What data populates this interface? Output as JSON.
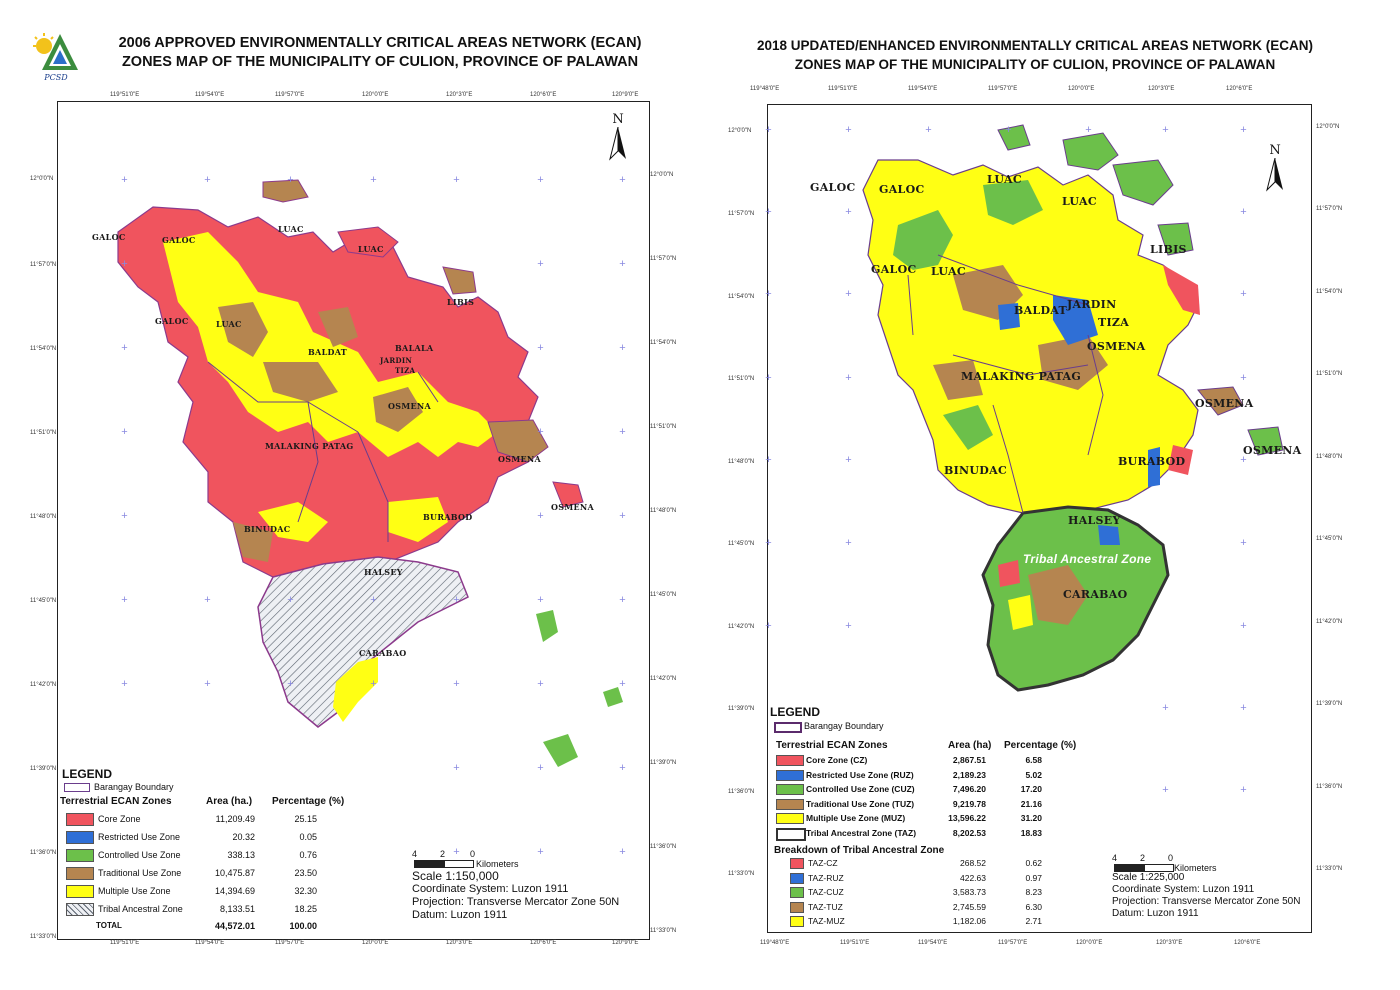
{
  "left_map": {
    "title_line1": "2006 APPROVED ENVIRONMENTALLY CRITICAL AREAS NETWORK (ECAN)",
    "title_line2": "ZONES MAP OF THE MUNICIPALITY OF CULION, PROVINCE OF PALAWAN",
    "logo_text": "PCSD",
    "north": "N",
    "lon_ticks": [
      "119°51'0\"E",
      "119°54'0\"E",
      "119°57'0\"E",
      "120°0'0\"E",
      "120°3'0\"E",
      "120°6'0\"E",
      "120°9'0\"E"
    ],
    "lat_ticks_left": [
      "12°0'0\"N",
      "11°57'0\"N",
      "11°54'0\"N",
      "11°51'0\"N",
      "11°48'0\"N",
      "11°45'0\"N",
      "11°42'0\"N",
      "11°39'0\"N",
      "11°36'0\"N",
      "11°33'0\"N"
    ],
    "lat_ticks_right": [
      "12°0'0\"N",
      "11°57'0\"N",
      "11°54'0\"N",
      "11°51'0\"N",
      "11°48'0\"N",
      "11°45'0\"N",
      "11°42'0\"N",
      "11°39'0\"N",
      "11°36'0\"N",
      "11°33'0\"N"
    ],
    "barangays": [
      "GALOC",
      "GALOC",
      "GALOC",
      "LUAC",
      "LUAC",
      "LUAC",
      "LIBIS",
      "BALDAT",
      "BALALA",
      "JARDIN",
      "TIZA",
      "OSMENA",
      "OSMENA",
      "OSMENA",
      "MALAKING PATAG",
      "BINUDAC",
      "BURABOD",
      "HALSEY",
      "CARABAO"
    ],
    "legend": {
      "title": "LEGEND",
      "boundary": "Barangay Boundary",
      "zones_header": "Terrestrial ECAN Zones",
      "area_header": "Area (ha.)",
      "pct_header": "Percentage (%)",
      "rows": [
        {
          "name": "Core Zone",
          "area": "11,209.49",
          "pct": "25.15",
          "color": "#f0545e"
        },
        {
          "name": "Restricted Use Zone",
          "area": "20.32",
          "pct": "0.05",
          "color": "#2f6fd6"
        },
        {
          "name": "Controlled Use Zone",
          "area": "338.13",
          "pct": "0.76",
          "color": "#6cc04a"
        },
        {
          "name": "Traditional Use Zone",
          "area": "10,475.87",
          "pct": "23.50",
          "color": "#b58550"
        },
        {
          "name": "Multiple Use Zone",
          "area": "14,394.69",
          "pct": "32.30",
          "color": "#ffff14"
        },
        {
          "name": "Tribal Ancestral Zone",
          "area": "8,133.51",
          "pct": "18.25",
          "color": "hatch"
        }
      ],
      "total_label": "TOTAL",
      "total_area": "44,572.01",
      "total_pct": "100.00"
    },
    "scale": {
      "ticks": [
        "4",
        "2",
        "0"
      ],
      "unit": "Kilometers",
      "scale_text": "Scale 1:150,000",
      "coord_system": "Coordinate System: Luzon 1911",
      "projection": "Projection: Transverse Mercator Zone 50N",
      "datum": "Datum: Luzon 1911"
    }
  },
  "right_map": {
    "title_line1": "2018 UPDATED/ENHANCED ENVIRONMENTALLY CRITICAL AREAS NETWORK (ECAN)",
    "title_line2": "ZONES MAP OF THE MUNICIPALITY OF CULION, PROVINCE OF PALAWAN",
    "north": "N",
    "lon_ticks_top": [
      "119°48'0\"E",
      "119°51'0\"E",
      "119°54'0\"E",
      "119°57'0\"E",
      "120°0'0\"E",
      "120°3'0\"E",
      "120°6'0\"E"
    ],
    "lon_ticks_bottom": [
      "119°48'0\"E",
      "119°51'0\"E",
      "119°54'0\"E",
      "119°57'0\"E",
      "120°0'0\"E",
      "120°3'0\"E",
      "120°6'0\"E"
    ],
    "lat_ticks_left": [
      "12°0'0\"N",
      "11°57'0\"N",
      "11°54'0\"N",
      "11°51'0\"N",
      "11°48'0\"N",
      "11°45'0\"N",
      "11°42'0\"N",
      "11°39'0\"N",
      "11°36'0\"N",
      "11°33'0\"N"
    ],
    "lat_ticks_right": [
      "12°0'0\"N",
      "11°57'0\"N",
      "11°54'0\"N",
      "11°51'0\"N",
      "11°48'0\"N",
      "11°45'0\"N",
      "11°42'0\"N",
      "11°39'0\"N",
      "11°36'0\"N",
      "11°33'0\"N"
    ],
    "barangays": [
      "GALOC",
      "GALOC",
      "LUAC",
      "LUAC",
      "LIBIS",
      "GALOC",
      "LUAC",
      "JARDIN",
      "BALDAT",
      "TIZA",
      "OSMENA",
      "MALAKING PATAG",
      "OSMENA",
      "OSMENA",
      "BURABOD",
      "BINUDAC",
      "HALSEY",
      "Tribal Ancestral Zone",
      "CARABAO"
    ],
    "legend": {
      "title": "LEGEND",
      "boundary": "Barangay Boundary",
      "zones_header": "Terrestrial ECAN Zones",
      "area_header": "Area (ha)",
      "pct_header": "Percentage (%)",
      "rows": [
        {
          "name": "Core Zone (CZ)",
          "area": "2,867.51",
          "pct": "6.58",
          "color": "#f0545e"
        },
        {
          "name": "Restricted Use Zone (RUZ)",
          "area": "2,189.23",
          "pct": "5.02",
          "color": "#2f6fd6"
        },
        {
          "name": "Controlled Use Zone (CUZ)",
          "area": "7,496.20",
          "pct": "17.20",
          "color": "#6cc04a"
        },
        {
          "name": "Traditional Use Zone (TUZ)",
          "area": "9,219.78",
          "pct": "21.16",
          "color": "#b58550"
        },
        {
          "name": "Multiple Use Zone (MUZ)",
          "area": "13,596.22",
          "pct": "31.20",
          "color": "#ffff14"
        },
        {
          "name": "Tribal Ancestral Zone (TAZ)",
          "area": "8,202.53",
          "pct": "18.83",
          "color": "outline"
        }
      ],
      "breakdown_header": "Breakdown of Tribal Ancestral Zone",
      "breakdown": [
        {
          "name": "TAZ-CZ",
          "area": "268.52",
          "pct": "0.62",
          "color": "#f0545e"
        },
        {
          "name": "TAZ-RUZ",
          "area": "422.63",
          "pct": "0.97",
          "color": "#2f6fd6"
        },
        {
          "name": "TAZ-CUZ",
          "area": "3,583.73",
          "pct": "8.23",
          "color": "#6cc04a"
        },
        {
          "name": "TAZ-TUZ",
          "area": "2,745.59",
          "pct": "6.30",
          "color": "#b58550"
        },
        {
          "name": "TAZ-MUZ",
          "area": "1,182.06",
          "pct": "2.71",
          "color": "#ffff14"
        }
      ]
    },
    "scale": {
      "ticks": [
        "4",
        "2",
        "0"
      ],
      "unit": "Kilometers",
      "scale_text": "Scale 1:225,000",
      "coord_system": "Coordinate System: Luzon 1911",
      "projection": "Projection: Transverse Mercator Zone 50N",
      "datum": "Datum: Luzon 1911"
    }
  }
}
